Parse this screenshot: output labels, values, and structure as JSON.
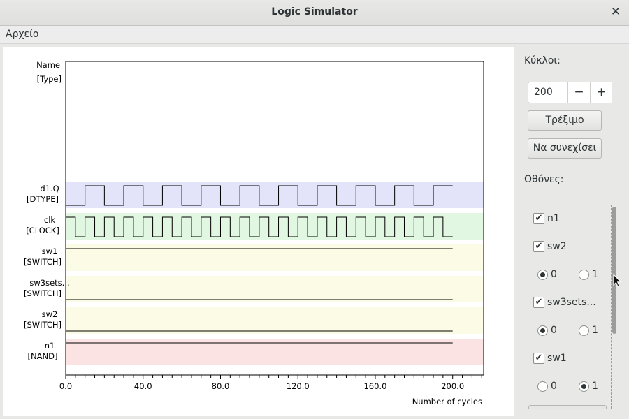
{
  "window": {
    "title": "Logic Simulator"
  },
  "menubar": {
    "file": "Αρχείο"
  },
  "plot": {
    "header_name": "Name",
    "header_type": "[Type]",
    "xlabel": "Number of cycles",
    "xticks": [
      "0.0",
      "40.0",
      "80.0",
      "120.0",
      "160.0",
      "200.0"
    ],
    "xlim": [
      0,
      216
    ],
    "cycles": 200,
    "signals": [
      {
        "name": "d1.Q",
        "type": "[DTYPE]",
        "color": "#e3e3fa",
        "kind": "clock",
        "period": 20,
        "first_rise": 10
      },
      {
        "name": "clk",
        "type": "[CLOCK]",
        "color": "#e2f7e2",
        "kind": "clock",
        "period": 10,
        "first_rise": 0
      },
      {
        "name": "sw1",
        "type": "[SWITCH]",
        "color": "#fbfbe6",
        "kind": "const",
        "level": 1
      },
      {
        "name": "sw3sets...",
        "type": "[SWITCH]",
        "color": "#fbfbe6",
        "kind": "const",
        "level": 0
      },
      {
        "name": "sw2",
        "type": "[SWITCH]",
        "color": "#fbfbe6",
        "kind": "const",
        "level": 0
      },
      {
        "name": "n1",
        "type": "[NAND]",
        "color": "#fce3e3",
        "kind": "const",
        "level": 1
      }
    ]
  },
  "controls": {
    "cycles_label": "Κύκλοι:",
    "cycles_value": "200",
    "minus": "−",
    "plus": "+",
    "run_label": "Τρέξιμο",
    "continue_label": "Να συνεχίσει",
    "monitors_label": "Οθόνες:",
    "monitors": [
      {
        "label": "n1",
        "checked": true
      },
      {
        "label": "sw2",
        "checked": true,
        "switch": {
          "options": [
            "0",
            "1"
          ],
          "selected": "0"
        }
      },
      {
        "label": "sw3sets...",
        "checked": true,
        "switch": {
          "options": [
            "0",
            "1"
          ],
          "selected": "0"
        }
      },
      {
        "label": "sw1",
        "checked": true,
        "switch": {
          "options": [
            "0",
            "1"
          ],
          "selected": "1"
        }
      }
    ]
  }
}
